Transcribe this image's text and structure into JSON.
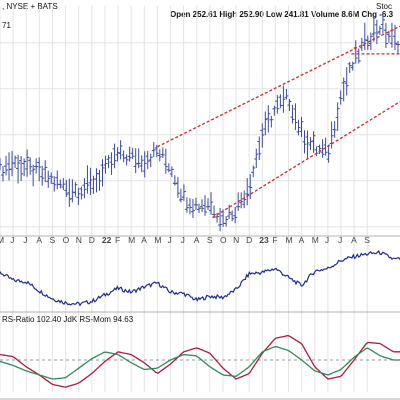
{
  "header": {
    "ticker_line": ", NYSE + BATS",
    "ohlc": "Open 252.61  High 252.90  Low 241.81  Volume 8.6M  Chg -6.3",
    "last_value": "71",
    "watermark": "Stoc",
    "rs_label": "RS-Ratio 102.40  JdK RS-Mom 94.63"
  },
  "chart_data": [
    {
      "type": "ohlc",
      "title": "",
      "x_labels": [
        "M",
        "J",
        "J",
        "A",
        "S",
        "O",
        "N",
        "D",
        "22",
        "F",
        "M",
        "A",
        "M",
        "J",
        "J",
        "A",
        "S",
        "O",
        "N",
        "D",
        "23",
        "F",
        "M",
        "A",
        "M",
        "J",
        "J",
        "A",
        "S"
      ],
      "x_label_months": [
        0,
        1,
        2,
        3,
        4,
        5,
        6,
        7,
        8,
        9,
        10,
        11,
        12,
        13,
        14,
        15,
        16,
        17,
        18,
        19,
        20,
        21,
        22,
        23,
        24,
        25,
        26,
        27,
        28
      ],
      "x_month_range": [
        0,
        30.5
      ],
      "grid": true,
      "ylim": [
        40,
        290
      ],
      "price_path_months": [
        0,
        1,
        2,
        3,
        4,
        5,
        6,
        7,
        8,
        9,
        10,
        11,
        12,
        13,
        14,
        15,
        16,
        17,
        18,
        19,
        20,
        21,
        22,
        23,
        24,
        25,
        26,
        27,
        28,
        29,
        30
      ],
      "price_path_values": [
        112,
        120,
        113,
        108,
        100,
        93,
        90,
        97,
        110,
        128,
        126,
        123,
        132,
        116,
        83,
        73,
        77,
        58,
        70,
        95,
        150,
        178,
        190,
        152,
        135,
        130,
        192,
        230,
        255,
        268,
        252
      ],
      "trend_lines": [
        {
          "name": "upper-channel",
          "from": [
            12.0,
            137
          ],
          "to": [
            30.5,
            268
          ],
          "color": "#d62728",
          "dash": true
        },
        {
          "name": "lower-channel",
          "from": [
            16.2,
            60
          ],
          "to": [
            30.5,
            186
          ],
          "color": "#d62728",
          "dash": true
        },
        {
          "name": "support-level",
          "from": [
            26.8,
            238
          ],
          "to": [
            30.5,
            238
          ],
          "color": "#d62728",
          "dash": true
        }
      ]
    },
    {
      "type": "line",
      "title": "",
      "name": "relative-strength",
      "ylim": [
        0,
        100
      ],
      "x": [
        0,
        1,
        2,
        3,
        4,
        5,
        6,
        7,
        8,
        9,
        10,
        11,
        12,
        13,
        14,
        15,
        16,
        17,
        18,
        19,
        20,
        21,
        22,
        23,
        24,
        25,
        26,
        27,
        28,
        29,
        30
      ],
      "values": [
        60,
        48,
        46,
        32,
        20,
        14,
        12,
        16,
        26,
        36,
        30,
        38,
        44,
        30,
        28,
        18,
        24,
        22,
        34,
        58,
        60,
        66,
        52,
        40,
        62,
        66,
        78,
        84,
        88,
        90,
        80
      ],
      "color": "#1f2a8c"
    },
    {
      "type": "line",
      "title": "",
      "ylim": [
        0,
        100
      ],
      "x": [
        0,
        1,
        2,
        3,
        4,
        5,
        6,
        7,
        8,
        9,
        10,
        11,
        12,
        13,
        14,
        15,
        16,
        17,
        18,
        19,
        20,
        21,
        22,
        23,
        24,
        25,
        26,
        27,
        28,
        29,
        30
      ],
      "series": [
        {
          "name": "RS-Ratio",
          "color": "#b5183f",
          "values": [
            58,
            55,
            40,
            28,
            14,
            10,
            16,
            30,
            48,
            62,
            58,
            46,
            30,
            44,
            62,
            68,
            60,
            38,
            22,
            30,
            60,
            82,
            86,
            74,
            40,
            22,
            26,
            50,
            76,
            74,
            62
          ]
        },
        {
          "name": "JdK RS-Mom",
          "color": "#2e8b57",
          "values": [
            48,
            42,
            34,
            28,
            22,
            24,
            38,
            52,
            62,
            58,
            46,
            36,
            38,
            50,
            58,
            56,
            40,
            28,
            26,
            40,
            62,
            70,
            64,
            50,
            34,
            28,
            36,
            54,
            68,
            56,
            50
          ]
        }
      ],
      "mid_line": 50
    }
  ],
  "colors": {
    "price_bars": "#3a4a9c",
    "grid": "#e3e3e3",
    "axis": "#888888",
    "panel_border": "#b0b0b0",
    "mid_line": "#999999"
  }
}
